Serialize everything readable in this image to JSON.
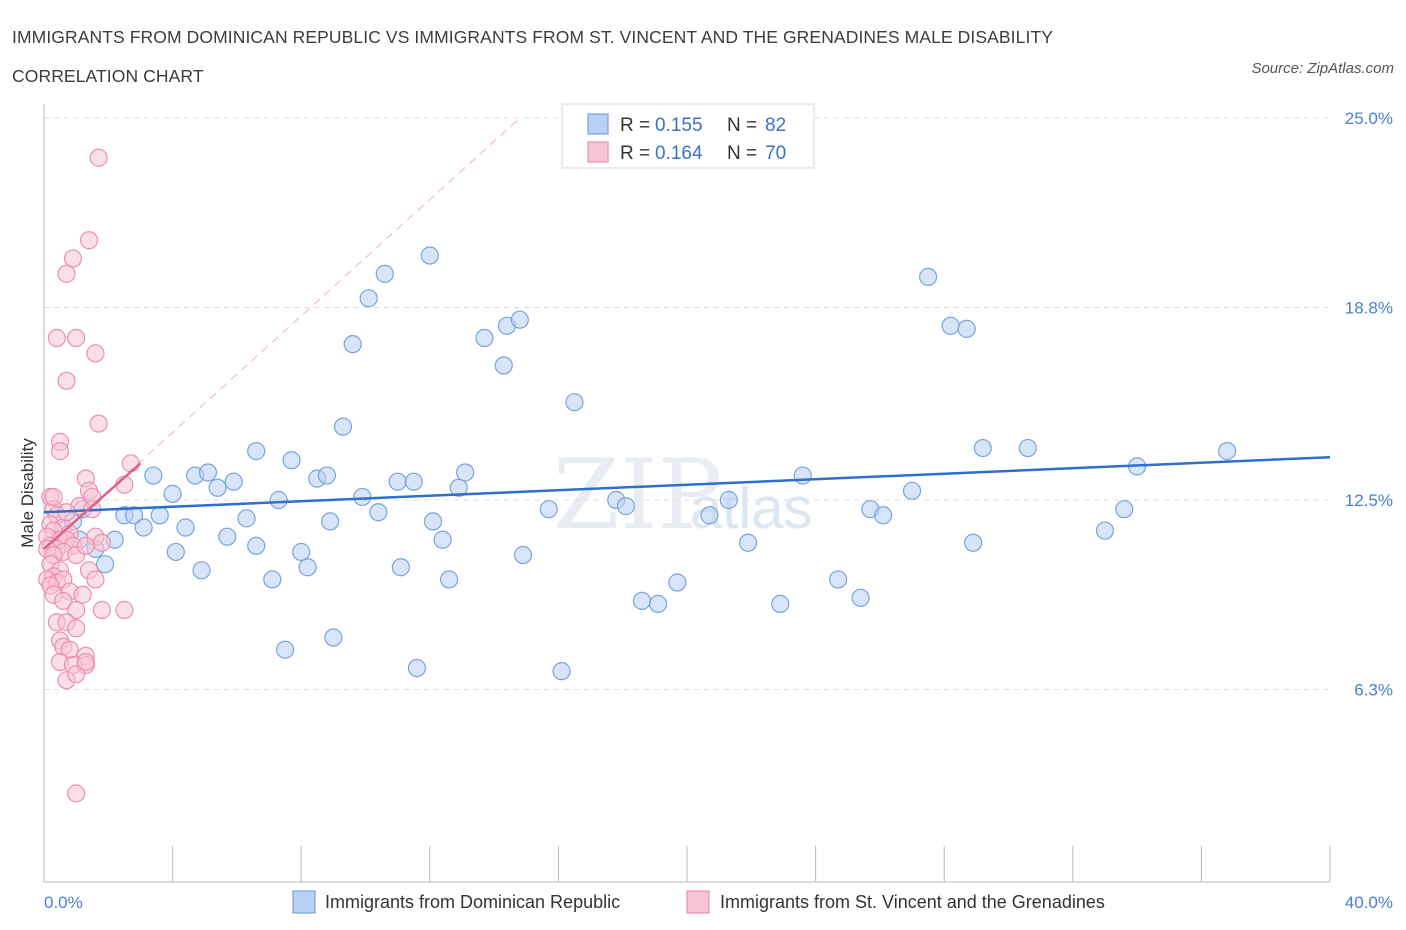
{
  "header": {
    "title": "IMMIGRANTS FROM DOMINICAN REPUBLIC VS IMMIGRANTS FROM ST. VINCENT AND THE GRENADINES MALE DISABILITY CORRELATION CHART",
    "source": "Source: ZipAtlas.com"
  },
  "watermark": {
    "zip": "ZIP",
    "atlas": "atlas"
  },
  "legend": {
    "r_label": "R =",
    "n_label": "N =",
    "series1": {
      "r": "0.155",
      "n": "82"
    },
    "series2": {
      "r": "0.164",
      "n": "70"
    }
  },
  "chart_data": {
    "type": "scatter",
    "title": "IMMIGRANTS FROM DOMINICAN REPUBLIC VS IMMIGRANTS FROM ST. VINCENT AND THE GRENADINES MALE DISABILITY CORRELATION CHART",
    "xlabel": "",
    "ylabel": "Male Disability",
    "xlim": [
      0,
      40
    ],
    "ylim": [
      0,
      25
    ],
    "x_tick_labels": [
      "0.0%",
      "40.0%"
    ],
    "y_ticks": [
      6.3,
      12.5,
      18.8,
      25.0
    ],
    "y_tick_labels": [
      "6.3%",
      "12.5%",
      "18.8%",
      "25.0%"
    ],
    "grid": true,
    "legend_position": "top-center",
    "colors": {
      "series1_fill": "#b8d0f4",
      "series1_stroke": "#7aa3de",
      "series1_line": "#2f6fcc",
      "series2_fill": "#f7c4d4",
      "series2_stroke": "#eb90ae",
      "series2_line": "#e0608a",
      "grid": "#dddddd",
      "axis": "#bbbbbb"
    },
    "series": [
      {
        "name": "Immigrants from Dominican Republic",
        "color": "#7aa3de",
        "r": 0.155,
        "n": 82,
        "trend": [
          [
            0,
            12.1
          ],
          [
            40,
            13.9
          ]
        ],
        "points": [
          [
            0.9,
            11.8
          ],
          [
            1.1,
            11.2
          ],
          [
            1.2,
            12.2
          ],
          [
            1.6,
            10.9
          ],
          [
            1.9,
            10.4
          ],
          [
            2.2,
            11.2
          ],
          [
            2.5,
            12.0
          ],
          [
            2.8,
            12.0
          ],
          [
            3.1,
            11.6
          ],
          [
            3.4,
            13.3
          ],
          [
            3.6,
            12.0
          ],
          [
            4.0,
            12.7
          ],
          [
            4.1,
            10.8
          ],
          [
            4.4,
            11.6
          ],
          [
            4.7,
            13.3
          ],
          [
            4.9,
            10.2
          ],
          [
            5.1,
            13.4
          ],
          [
            5.4,
            12.9
          ],
          [
            5.7,
            11.3
          ],
          [
            5.9,
            13.1
          ],
          [
            6.3,
            11.9
          ],
          [
            6.6,
            11.0
          ],
          [
            6.6,
            14.1
          ],
          [
            7.1,
            9.9
          ],
          [
            7.3,
            12.5
          ],
          [
            7.5,
            7.6
          ],
          [
            7.7,
            13.8
          ],
          [
            8.0,
            10.8
          ],
          [
            8.2,
            10.3
          ],
          [
            8.5,
            13.2
          ],
          [
            8.8,
            13.3
          ],
          [
            9.0,
            8.0
          ],
          [
            9.3,
            14.9
          ],
          [
            9.6,
            17.6
          ],
          [
            9.9,
            12.6
          ],
          [
            10.1,
            19.1
          ],
          [
            10.4,
            12.1
          ],
          [
            10.6,
            19.9
          ],
          [
            11.0,
            13.1
          ],
          [
            11.1,
            10.3
          ],
          [
            11.5,
            13.1
          ],
          [
            11.6,
            7.0
          ],
          [
            12.0,
            20.5
          ],
          [
            12.1,
            11.8
          ],
          [
            12.4,
            11.2
          ],
          [
            12.6,
            9.9
          ],
          [
            12.9,
            12.9
          ],
          [
            13.1,
            13.4
          ],
          [
            13.7,
            17.8
          ],
          [
            14.4,
            18.2
          ],
          [
            14.8,
            18.4
          ],
          [
            14.3,
            16.9
          ],
          [
            14.9,
            10.7
          ],
          [
            16.1,
            6.9
          ],
          [
            16.5,
            15.7
          ],
          [
            17.8,
            12.5
          ],
          [
            18.1,
            12.3
          ],
          [
            18.6,
            9.2
          ],
          [
            19.1,
            9.1
          ],
          [
            19.7,
            9.8
          ],
          [
            20.7,
            12.0
          ],
          [
            21.3,
            12.5
          ],
          [
            21.9,
            11.1
          ],
          [
            22.9,
            9.1
          ],
          [
            24.7,
            9.9
          ],
          [
            25.4,
            9.3
          ],
          [
            25.7,
            12.2
          ],
          [
            26.1,
            12.0
          ],
          [
            27.5,
            19.8
          ],
          [
            28.2,
            18.2
          ],
          [
            28.7,
            18.1
          ],
          [
            28.9,
            11.1
          ],
          [
            29.2,
            14.2
          ],
          [
            30.6,
            14.2
          ],
          [
            33.0,
            11.5
          ],
          [
            33.6,
            12.2
          ],
          [
            34.0,
            13.6
          ],
          [
            36.8,
            14.1
          ],
          [
            8.9,
            11.8
          ],
          [
            15.7,
            12.2
          ],
          [
            23.6,
            13.3
          ],
          [
            27.0,
            12.8
          ]
        ]
      },
      {
        "name": "Immigrants from St. Vincent and the Grenadines",
        "color": "#eb90ae",
        "r": 0.164,
        "n": 70,
        "trend": [
          [
            0,
            10.9
          ],
          [
            3.0,
            13.7
          ]
        ],
        "trend_extended": [
          [
            0,
            10.9
          ],
          [
            14.8,
            25.0
          ]
        ],
        "points": [
          [
            1.7,
            23.7
          ],
          [
            1.4,
            21.0
          ],
          [
            0.9,
            20.4
          ],
          [
            0.7,
            19.9
          ],
          [
            0.4,
            17.8
          ],
          [
            1.0,
            17.8
          ],
          [
            1.6,
            17.3
          ],
          [
            0.7,
            16.4
          ],
          [
            1.7,
            15.0
          ],
          [
            0.5,
            14.4
          ],
          [
            0.5,
            14.1
          ],
          [
            2.7,
            13.7
          ],
          [
            2.5,
            13.0
          ],
          [
            1.3,
            13.2
          ],
          [
            1.4,
            12.8
          ],
          [
            1.5,
            12.6
          ],
          [
            0.2,
            12.6
          ],
          [
            1.1,
            12.3
          ],
          [
            1.5,
            12.2
          ],
          [
            0.3,
            12.2
          ],
          [
            0.4,
            12.0
          ],
          [
            0.2,
            11.7
          ],
          [
            0.6,
            11.6
          ],
          [
            0.8,
            11.4
          ],
          [
            0.3,
            11.5
          ],
          [
            0.1,
            11.3
          ],
          [
            0.5,
            11.2
          ],
          [
            0.7,
            11.2
          ],
          [
            0.9,
            11.0
          ],
          [
            0.2,
            11.0
          ],
          [
            0.4,
            10.9
          ],
          [
            0.6,
            10.8
          ],
          [
            0.1,
            10.9
          ],
          [
            0.3,
            10.7
          ],
          [
            1.6,
            11.3
          ],
          [
            1.8,
            11.1
          ],
          [
            0.2,
            10.4
          ],
          [
            0.5,
            10.2
          ],
          [
            0.3,
            10.0
          ],
          [
            0.1,
            9.9
          ],
          [
            0.4,
            9.8
          ],
          [
            0.6,
            9.9
          ],
          [
            0.2,
            9.7
          ],
          [
            0.8,
            9.5
          ],
          [
            1.0,
            10.7
          ],
          [
            1.4,
            10.2
          ],
          [
            1.6,
            9.9
          ],
          [
            0.3,
            9.4
          ],
          [
            0.6,
            9.2
          ],
          [
            1.2,
            9.4
          ],
          [
            1.0,
            8.9
          ],
          [
            1.8,
            8.9
          ],
          [
            2.5,
            8.9
          ],
          [
            0.4,
            8.5
          ],
          [
            0.7,
            8.5
          ],
          [
            1.0,
            8.3
          ],
          [
            0.5,
            7.9
          ],
          [
            0.6,
            7.7
          ],
          [
            0.8,
            7.6
          ],
          [
            1.3,
            7.4
          ],
          [
            0.5,
            7.2
          ],
          [
            0.9,
            7.1
          ],
          [
            1.3,
            7.1
          ],
          [
            0.7,
            6.6
          ],
          [
            1.0,
            6.8
          ],
          [
            1.3,
            7.2
          ],
          [
            1.0,
            2.9
          ],
          [
            0.7,
            12.1
          ],
          [
            1.3,
            11.0
          ],
          [
            0.3,
            12.6
          ]
        ]
      }
    ]
  },
  "bottom_legend": {
    "series1_label": "Immigrants from Dominican Republic",
    "series2_label": "Immigrants from St. Vincent and the Grenadines"
  }
}
